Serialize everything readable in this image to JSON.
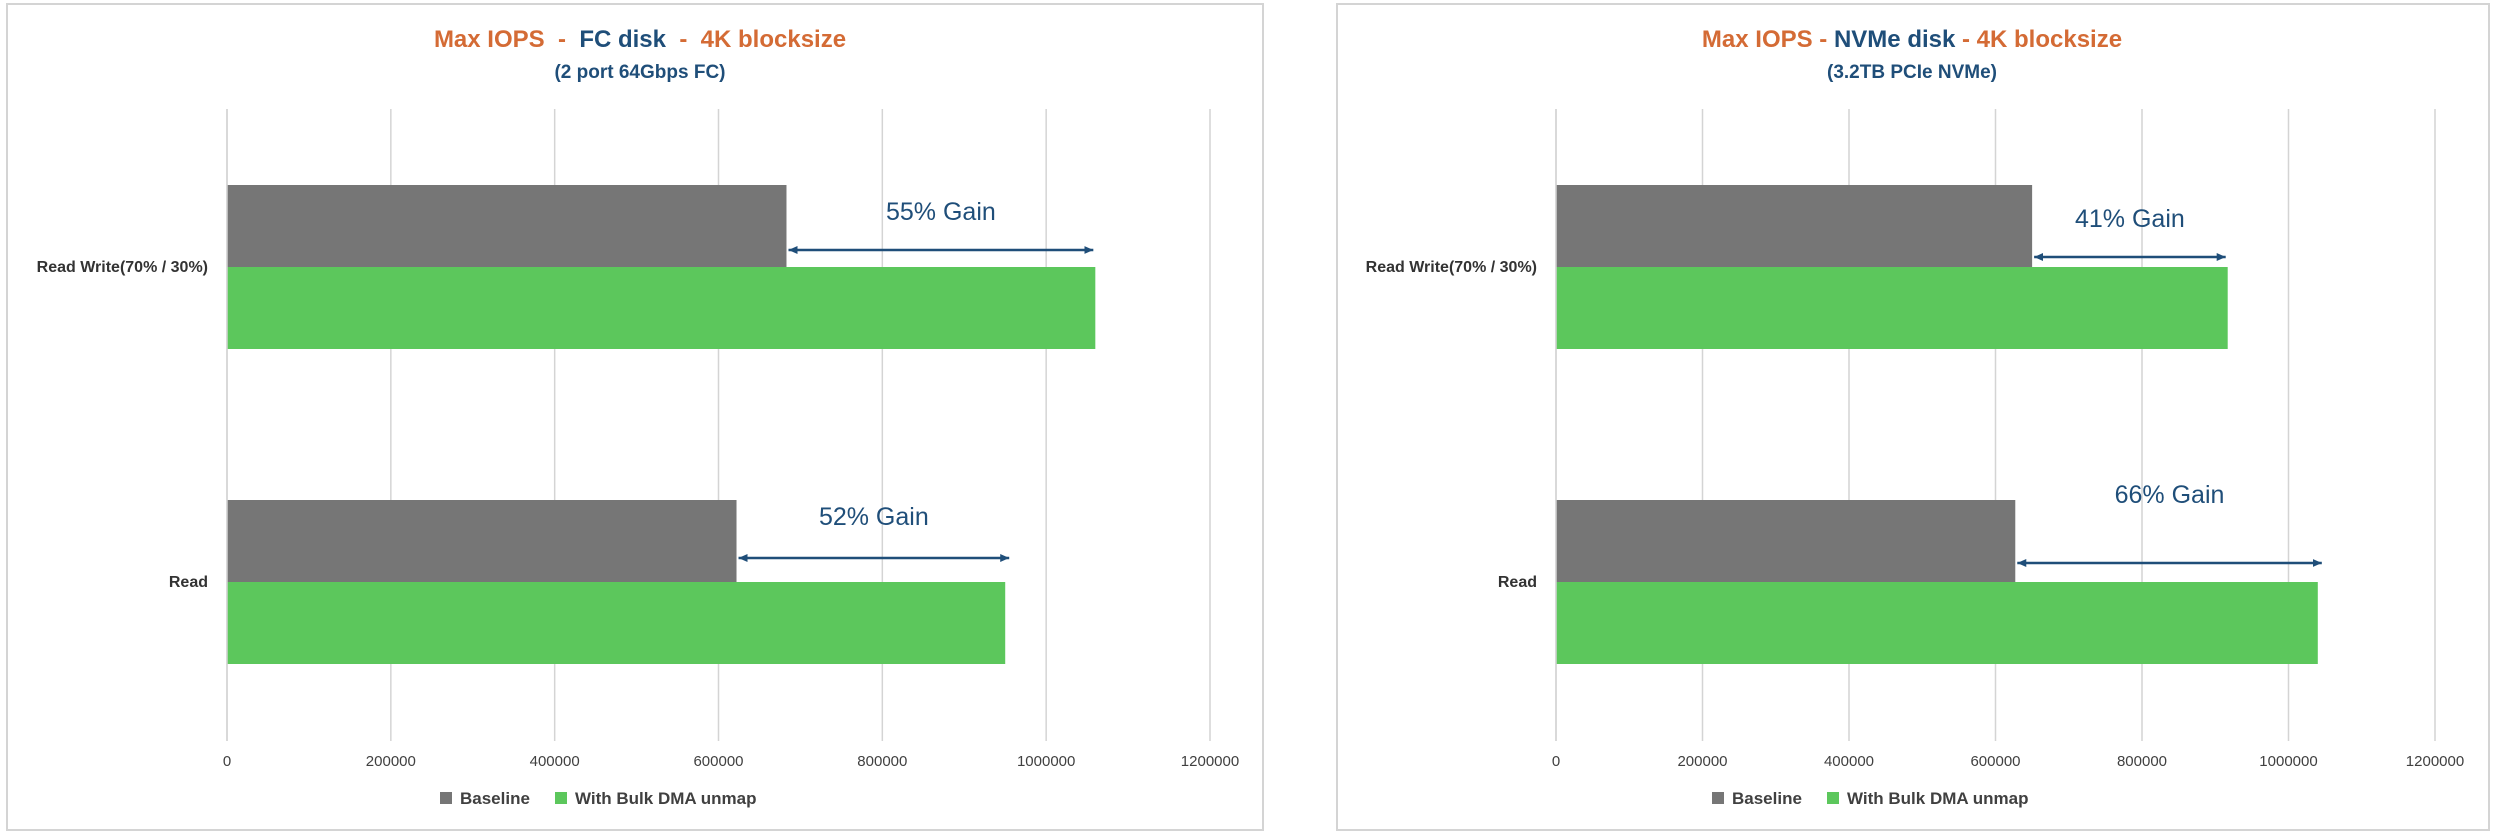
{
  "colors": {
    "baseline": "#767676",
    "bulk": "#5cc75c",
    "title_orange": "#d46b35",
    "title_blue": "#1f4e79",
    "annotation": "#1f4e79",
    "grid": "#d4d4d4"
  },
  "chart_data": [
    {
      "type": "bar",
      "orientation": "horizontal",
      "title_parts": [
        {
          "text": "Max IOPS  -  ",
          "color": "orange"
        },
        {
          "text": "FC disk",
          "color": "blue"
        },
        {
          "text": "  -  4K blocksize",
          "color": "orange"
        }
      ],
      "subtitle": "(2 port 64Gbps FC)",
      "categories": [
        "Read Write(70% / 30%)",
        "Read"
      ],
      "series": [
        {
          "name": "Baseline",
          "values": [
            683000,
            622000
          ]
        },
        {
          "name": "With Bulk DMA unmap",
          "values": [
            1060000,
            950000
          ]
        }
      ],
      "xlim": [
        0,
        1200000
      ],
      "xticks": [
        "0",
        "200000",
        "400000",
        "600000",
        "800000",
        "1000000",
        "1200000"
      ],
      "grid": true,
      "legend": "bottom",
      "annotations": [
        {
          "category": "Read Write(70% / 30%)",
          "text": "55% Gain"
        },
        {
          "category": "Read",
          "text": "52% Gain"
        }
      ]
    },
    {
      "type": "bar",
      "orientation": "horizontal",
      "title_parts": [
        {
          "text": "Max IOPS - ",
          "color": "orange"
        },
        {
          "text": "NVMe disk",
          "color": "blue"
        },
        {
          "text": " - 4K blocksize",
          "color": "orange"
        }
      ],
      "subtitle": "(3.2TB PCIe NVMe)",
      "categories": [
        "Read Write(70% / 30%)",
        "Read"
      ],
      "series": [
        {
          "name": "Baseline",
          "values": [
            650000,
            627000
          ]
        },
        {
          "name": "With Bulk DMA unmap",
          "values": [
            917000,
            1040000
          ]
        }
      ],
      "xlim": [
        0,
        1200000
      ],
      "xticks": [
        "0",
        "200000",
        "400000",
        "600000",
        "800000",
        "1000000",
        "1200000"
      ],
      "grid": true,
      "legend": "bottom",
      "annotations": [
        {
          "category": "Read Write(70% / 30%)",
          "text": "41% Gain"
        },
        {
          "category": "Read",
          "text": "66% Gain"
        }
      ]
    }
  ]
}
